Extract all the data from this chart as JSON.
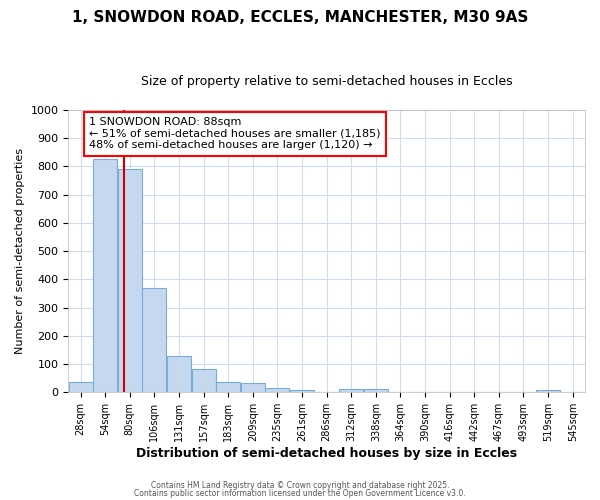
{
  "title1": "1, SNOWDON ROAD, ECCLES, MANCHESTER, M30 9AS",
  "title2": "Size of property relative to semi-detached houses in Eccles",
  "xlabel": "Distribution of semi-detached houses by size in Eccles",
  "ylabel": "Number of semi-detached properties",
  "categories": [
    "28sqm",
    "54sqm",
    "80sqm",
    "106sqm",
    "131sqm",
    "157sqm",
    "183sqm",
    "209sqm",
    "235sqm",
    "261sqm",
    "286sqm",
    "312sqm",
    "338sqm",
    "364sqm",
    "390sqm",
    "416sqm",
    "442sqm",
    "467sqm",
    "493sqm",
    "519sqm",
    "545sqm"
  ],
  "values": [
    37,
    828,
    790,
    370,
    127,
    82,
    37,
    33,
    15,
    10,
    0,
    12,
    12,
    0,
    0,
    0,
    0,
    0,
    0,
    10,
    0
  ],
  "bar_color": "#c5d8f0",
  "bar_edge_color": "#7aadd4",
  "vline_x_index": 2,
  "vline_x_offset": -0.25,
  "vline_color": "#cc0000",
  "annotation_title": "1 SNOWDON ROAD: 88sqm",
  "annotation_line1": "← 51% of semi-detached houses are smaller (1,185)",
  "annotation_line2": "48% of semi-detached houses are larger (1,120) →",
  "ylim": [
    0,
    1000
  ],
  "yticks": [
    0,
    100,
    200,
    300,
    400,
    500,
    600,
    700,
    800,
    900,
    1000
  ],
  "footer1": "Contains HM Land Registry data © Crown copyright and database right 2025.",
  "footer2": "Contains public sector information licensed under the Open Government Licence v3.0.",
  "background_color": "#ffffff",
  "grid_color": "#d0ddf0",
  "title1_fontsize": 11,
  "title2_fontsize": 9,
  "xlabel_fontsize": 9,
  "ylabel_fontsize": 8,
  "annotation_fontsize": 8,
  "tick_labelsize": 8
}
